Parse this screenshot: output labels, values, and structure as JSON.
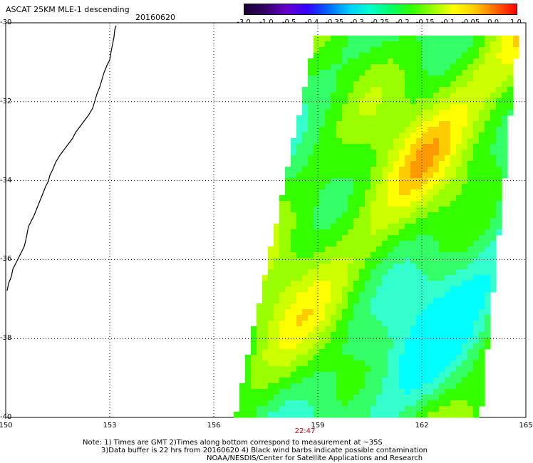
{
  "header": {
    "title": "ASCAT 25KM MLE-1 descending",
    "date": "20160620"
  },
  "colorbar": {
    "labels": [
      "-3.0",
      "-1.0",
      "-0.5",
      "-0.4",
      "-0.35",
      "-0.3",
      "-0.25",
      "-0.2",
      "-0.15",
      "-0.1",
      "-0.05",
      "0.0",
      "1.0"
    ],
    "colors": [
      "#1a0033",
      "#330066",
      "#6600cc",
      "#3300ff",
      "#0066ff",
      "#00ccff",
      "#00ffcc",
      "#00ff66",
      "#33ff00",
      "#99ff00",
      "#ffff00",
      "#ffcc00",
      "#ff6600",
      "#ff0000"
    ]
  },
  "axes": {
    "lat_labels": [
      "-30",
      "-32",
      "-34",
      "-36",
      "-38",
      "-40"
    ],
    "lon_labels": [
      "150",
      "153",
      "156",
      "159",
      "162",
      "165"
    ],
    "time_label": "22:47"
  },
  "notes": {
    "line1": "Note: 1) Times are GMT 2)Times along bottom correspond to measurement at ~35S",
    "line2": "3)Data buffer is 22 hrs from 20160620 4) Black wind barbs indicate possible contamination",
    "line3": "NOAA/NESDIS/Center for Satellite Applications and Research"
  }
}
